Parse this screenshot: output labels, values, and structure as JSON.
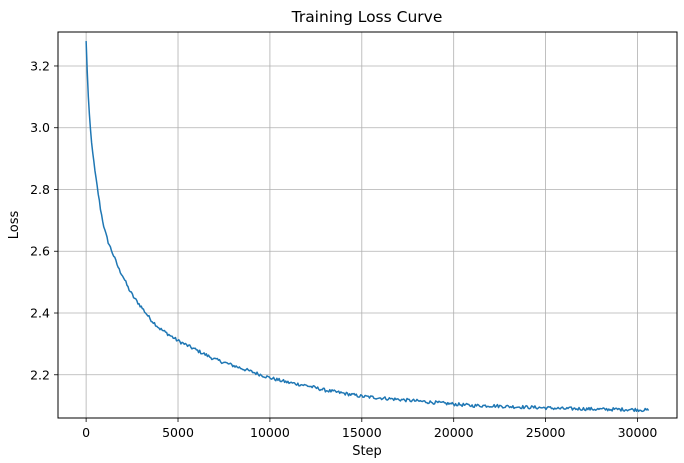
{
  "chart_data": {
    "type": "line",
    "title": "Training Loss Curve",
    "xlabel": "Step",
    "ylabel": "Loss",
    "xlim": [
      -1530,
      32150
    ],
    "ylim": [
      2.06,
      3.31
    ],
    "xticks": [
      0,
      5000,
      10000,
      15000,
      20000,
      25000,
      30000
    ],
    "xtick_labels": [
      "0",
      "5000",
      "10000",
      "15000",
      "20000",
      "25000",
      "30000"
    ],
    "yticks": [
      2.2,
      2.4,
      2.6,
      2.8,
      3.0,
      3.2
    ],
    "ytick_labels": [
      "2.2",
      "2.4",
      "2.6",
      "2.8",
      "3.0",
      "3.2"
    ],
    "grid": true,
    "legend": "none",
    "series": [
      {
        "color": "#1f77b4",
        "x": [
          0,
          100,
          200,
          300,
          400,
          500,
          600,
          700,
          800,
          900,
          1000,
          1200,
          1400,
          1600,
          1800,
          2000,
          2300,
          2600,
          3000,
          3500,
          4000,
          4500,
          5000,
          5500,
          6000,
          7000,
          8000,
          9000,
          10000,
          11000,
          12000,
          13000,
          14000,
          15000,
          16000,
          17000,
          18000,
          19000,
          20000,
          21000,
          22000,
          23000,
          24000,
          25000,
          26000,
          27000,
          28000,
          29000,
          30000,
          30600
        ],
        "y": [
          3.28,
          3.12,
          3.02,
          2.95,
          2.9,
          2.85,
          2.81,
          2.77,
          2.73,
          2.7,
          2.67,
          2.63,
          2.6,
          2.57,
          2.54,
          2.52,
          2.48,
          2.45,
          2.42,
          2.38,
          2.35,
          2.33,
          2.31,
          2.295,
          2.28,
          2.25,
          2.23,
          2.21,
          2.19,
          2.175,
          2.165,
          2.15,
          2.14,
          2.13,
          2.125,
          2.12,
          2.115,
          2.11,
          2.105,
          2.1,
          2.1,
          2.097,
          2.095,
          2.093,
          2.09,
          2.09,
          2.088,
          2.088,
          2.087,
          2.085
        ]
      }
    ]
  }
}
